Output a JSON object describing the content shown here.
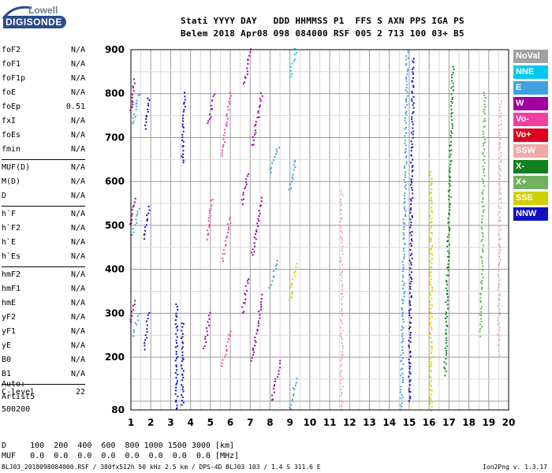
{
  "logo": {
    "top": "Lowell",
    "main": "DIGISONDE"
  },
  "header": {
    "row1": "Stati YYYY DAY   DDD HHMMSS P1  FFS S AXN PPS IGA PS",
    "row2": "Belem 2018 Apr08 098 084000 RSF 005 2 713 100 03+ B5"
  },
  "parameters": [
    {
      "group": [
        {
          "name": "foF2",
          "value": "N/A"
        },
        {
          "name": "foF1",
          "value": "N/A"
        },
        {
          "name": "foF1p",
          "value": "N/A"
        },
        {
          "name": "foE",
          "value": "N/A"
        },
        {
          "name": "foEp",
          "value": "0.51"
        },
        {
          "name": "fxI",
          "value": "N/A"
        },
        {
          "name": "foEs",
          "value": "N/A"
        },
        {
          "name": "fmin",
          "value": "N/A"
        }
      ]
    },
    {
      "group": [
        {
          "name": "MUF(D)",
          "value": "N/A"
        },
        {
          "name": "M(D)",
          "value": "N/A"
        },
        {
          "name": "D",
          "value": "N/A"
        }
      ]
    },
    {
      "group": [
        {
          "name": "h`F",
          "value": "N/A"
        },
        {
          "name": "h`F2",
          "value": "N/A"
        },
        {
          "name": "h`E",
          "value": "N/A"
        },
        {
          "name": "h`Es",
          "value": "N/A"
        }
      ]
    },
    {
      "group": [
        {
          "name": "hmF2",
          "value": "N/A"
        },
        {
          "name": "hmF1",
          "value": "N/A"
        },
        {
          "name": "hmE",
          "value": "N/A"
        },
        {
          "name": "yF2",
          "value": "N/A"
        },
        {
          "name": "yF1",
          "value": "N/A"
        },
        {
          "name": "yE",
          "value": "N/A"
        },
        {
          "name": "B0",
          "value": "N/A"
        },
        {
          "name": "B1",
          "value": "N/A"
        }
      ]
    },
    {
      "group": [
        {
          "name": "C-level",
          "value": "22"
        }
      ]
    }
  ],
  "auto": {
    "line1": "Auto:",
    "line2": "Artist5",
    "line3": "500200"
  },
  "legend": [
    {
      "label": "NoVal",
      "color": "#a0a0a0"
    },
    {
      "label": "NNE",
      "color": "#00c8f0"
    },
    {
      "label": "E",
      "color": "#40a0e0"
    },
    {
      "label": "W",
      "color": "#a000a0"
    },
    {
      "label": "Vo-",
      "color": "#f040a0"
    },
    {
      "label": "Vo+",
      "color": "#e00020"
    },
    {
      "label": "SSW",
      "color": "#f0a8a8"
    },
    {
      "label": "X-",
      "color": "#108020"
    },
    {
      "label": "X+",
      "color": "#70b060"
    },
    {
      "label": "SSE",
      "color": "#d0d000"
    },
    {
      "label": "NNW",
      "color": "#1010c0"
    }
  ],
  "footer": {
    "d_row": "D     100  200  400  600  800 1000 1500 3000 [km]",
    "muf_row": "MUF   0.0  0.0  0.0  0.0  0.0  0.0  0.0  0.0 [MHz]",
    "status_left": "BLJ03_2018098084000.RSF / 380fx512h 50 kHz 2.5 km / DPS-4D BLJ03 103 / 1.4 S 311.6 E",
    "status_right": "Ion2Png v. 1.3.17"
  },
  "chart_data": {
    "type": "scatter",
    "title": "",
    "xlabel": "",
    "ylabel": "",
    "xlim": [
      1,
      20
    ],
    "ylim": [
      80,
      900
    ],
    "x_ticks": [
      1,
      2,
      3,
      4,
      5,
      6,
      7,
      8,
      9,
      10,
      11,
      12,
      13,
      14,
      15,
      16,
      17,
      18,
      19,
      20
    ],
    "y_ticks": [
      80,
      200,
      300,
      400,
      500,
      600,
      700,
      800,
      900
    ],
    "grid": true,
    "traces": [
      {
        "color": "#a000a0",
        "f0": 1.0,
        "f1": 1.2,
        "h0": 280,
        "h1": 330
      },
      {
        "color": "#40a0e0",
        "f0": 1.1,
        "f1": 1.4,
        "h0": 250,
        "h1": 300
      },
      {
        "color": "#a000a0",
        "f0": 1.0,
        "f1": 1.2,
        "h0": 500,
        "h1": 560
      },
      {
        "color": "#40a0e0",
        "f0": 1.1,
        "f1": 1.4,
        "h0": 480,
        "h1": 540
      },
      {
        "color": "#a000a0",
        "f0": 1.0,
        "f1": 1.2,
        "h0": 760,
        "h1": 830
      },
      {
        "color": "#40a0e0",
        "f0": 1.1,
        "f1": 1.4,
        "h0": 730,
        "h1": 800
      },
      {
        "color": "#1010c0",
        "f0": 1.7,
        "f1": 1.9,
        "h0": 220,
        "h1": 300
      },
      {
        "color": "#1010c0",
        "f0": 1.7,
        "f1": 1.9,
        "h0": 470,
        "h1": 540
      },
      {
        "color": "#1010c0",
        "f0": 1.7,
        "f1": 1.9,
        "h0": 720,
        "h1": 790
      },
      {
        "color": "#1010c0",
        "f0": 3.3,
        "f1": 3.3,
        "h0": 80,
        "h1": 320
      },
      {
        "color": "#1010c0",
        "f0": 3.6,
        "f1": 3.6,
        "h0": 90,
        "h1": 280
      },
      {
        "color": "#1010c0",
        "f0": 3.6,
        "f1": 3.7,
        "h0": 640,
        "h1": 800
      },
      {
        "color": "#a000a0",
        "f0": 4.7,
        "f1": 5.0,
        "h0": 220,
        "h1": 300
      },
      {
        "color": "#f040a0",
        "f0": 4.8,
        "f1": 5.1,
        "h0": 470,
        "h1": 560
      },
      {
        "color": "#a000a0",
        "f0": 4.9,
        "f1": 5.2,
        "h0": 730,
        "h1": 800
      },
      {
        "color": "#f040a0",
        "f0": 5.6,
        "f1": 6.0,
        "h0": 180,
        "h1": 260
      },
      {
        "color": "#f040a0",
        "f0": 5.6,
        "f1": 6.0,
        "h0": 420,
        "h1": 520
      },
      {
        "color": "#f040a0",
        "f0": 5.6,
        "f1": 6.0,
        "h0": 660,
        "h1": 800
      },
      {
        "color": "#a000a0",
        "f0": 6.6,
        "f1": 6.9,
        "h0": 300,
        "h1": 380
      },
      {
        "color": "#a000a0",
        "f0": 6.6,
        "f1": 6.9,
        "h0": 550,
        "h1": 620
      },
      {
        "color": "#a000a0",
        "f0": 6.7,
        "f1": 7.0,
        "h0": 820,
        "h1": 900
      },
      {
        "color": "#a000a0",
        "f0": 7.1,
        "f1": 7.6,
        "h0": 190,
        "h1": 340
      },
      {
        "color": "#a000a0",
        "f0": 7.1,
        "f1": 7.6,
        "h0": 430,
        "h1": 560
      },
      {
        "color": "#a000a0",
        "f0": 7.1,
        "f1": 7.6,
        "h0": 680,
        "h1": 800
      },
      {
        "color": "#40a0e0",
        "f0": 8.0,
        "f1": 8.4,
        "h0": 360,
        "h1": 420
      },
      {
        "color": "#40a0e0",
        "f0": 8.0,
        "f1": 8.4,
        "h0": 620,
        "h1": 680
      },
      {
        "color": "#a000a0",
        "f0": 8.1,
        "f1": 8.5,
        "h0": 100,
        "h1": 190
      },
      {
        "color": "#d0d000",
        "f0": 9.0,
        "f1": 9.3,
        "h0": 330,
        "h1": 410
      },
      {
        "color": "#40a0e0",
        "f0": 9.0,
        "f1": 9.3,
        "h0": 580,
        "h1": 650
      },
      {
        "color": "#00c8f0",
        "f0": 9.0,
        "f1": 9.3,
        "h0": 840,
        "h1": 900
      },
      {
        "color": "#40a0e0",
        "f0": 9.0,
        "f1": 9.3,
        "h0": 80,
        "h1": 150
      },
      {
        "color": "#f0a8a8",
        "f0": 11.6,
        "f1": 11.6,
        "h0": 80,
        "h1": 580
      },
      {
        "color": "#40a0e0",
        "f0": 14.6,
        "f1": 14.9,
        "h0": 80,
        "h1": 900
      },
      {
        "color": "#1010c0",
        "f0": 15.0,
        "f1": 15.2,
        "h0": 100,
        "h1": 880
      },
      {
        "color": "#d0d000",
        "f0": 16.1,
        "f1": 16.1,
        "h0": 80,
        "h1": 620
      },
      {
        "color": "#108020",
        "f0": 16.8,
        "f1": 17.2,
        "h0": 160,
        "h1": 860
      },
      {
        "color": "#70b060",
        "f0": 18.6,
        "f1": 18.8,
        "h0": 250,
        "h1": 800
      },
      {
        "color": "#f0a8a8",
        "f0": 19.5,
        "f1": 19.6,
        "h0": 200,
        "h1": 780
      }
    ]
  }
}
